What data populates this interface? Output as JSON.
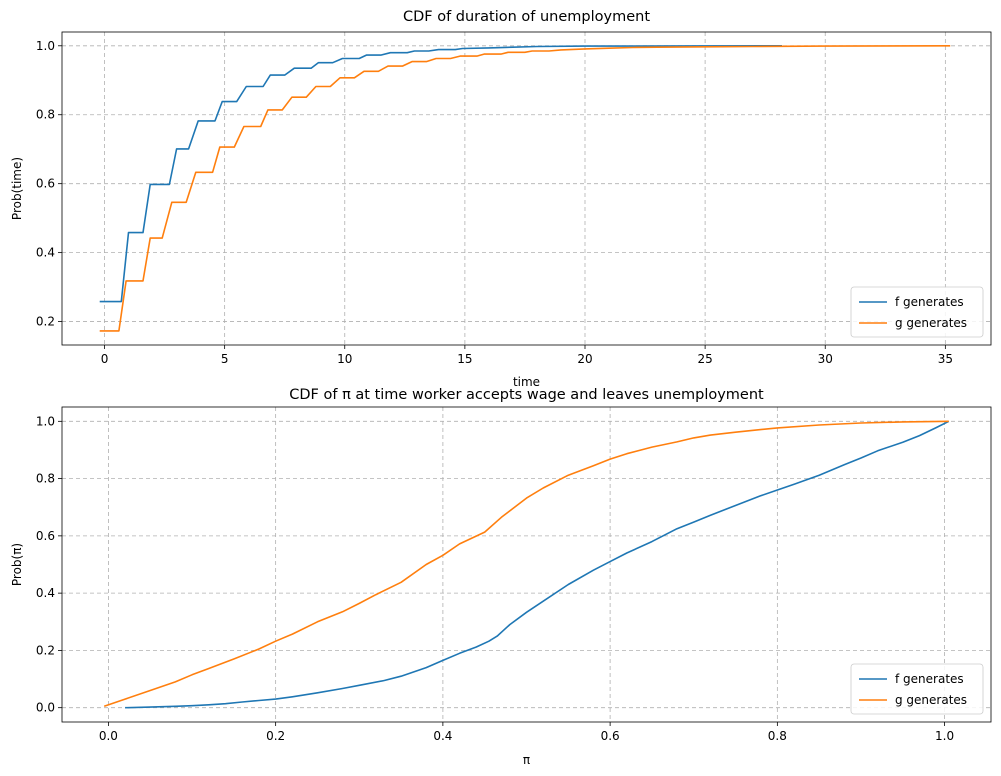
{
  "chart_data": [
    {
      "type": "line",
      "title": "CDF of duration of unemployment",
      "xlabel": "time",
      "ylabel": "Prob(time)",
      "xlim": [
        -1.77,
        36.9
      ],
      "ylim": [
        0.132,
        1.04
      ],
      "xticks": [
        0,
        5,
        10,
        15,
        20,
        25,
        30,
        35
      ],
      "yticks": [
        0.2,
        0.4,
        0.6,
        0.8,
        1.0
      ],
      "grid": true,
      "legend_position": "lower right",
      "series": [
        {
          "name": "f generates",
          "color": "#1f77b4",
          "x": [
            -0.2,
            0.7,
            1.0,
            1.6,
            1.9,
            2.7,
            3.0,
            3.5,
            3.9,
            4.6,
            4.9,
            5.5,
            5.9,
            6.6,
            6.9,
            7.5,
            7.9,
            8.6,
            8.9,
            9.5,
            9.9,
            10.6,
            10.9,
            11.5,
            11.9,
            12.6,
            12.9,
            13.5,
            13.9,
            14.6,
            14.9,
            16,
            17,
            18,
            20,
            28.2
          ],
          "y": [
            0.258,
            0.258,
            0.458,
            0.458,
            0.598,
            0.598,
            0.701,
            0.701,
            0.782,
            0.782,
            0.838,
            0.838,
            0.882,
            0.882,
            0.915,
            0.915,
            0.935,
            0.935,
            0.951,
            0.951,
            0.963,
            0.963,
            0.973,
            0.973,
            0.98,
            0.98,
            0.985,
            0.985,
            0.989,
            0.989,
            0.992,
            0.994,
            0.996,
            0.998,
            0.999,
            1.0
          ]
        },
        {
          "name": "g generates",
          "color": "#ff7f0e",
          "x": [
            -0.2,
            0.6,
            0.9,
            1.6,
            1.9,
            2.4,
            2.8,
            3.4,
            3.8,
            4.5,
            4.8,
            5.4,
            5.8,
            6.5,
            6.8,
            7.4,
            7.8,
            8.4,
            8.8,
            9.4,
            9.8,
            10.4,
            10.8,
            11.4,
            11.8,
            12.4,
            12.8,
            13.4,
            13.8,
            14.4,
            14.8,
            15.5,
            15.8,
            16.5,
            16.8,
            17.5,
            17.8,
            18.5,
            19,
            20,
            21,
            22,
            23,
            25,
            27,
            30,
            35.2
          ],
          "y": [
            0.173,
            0.173,
            0.318,
            0.318,
            0.442,
            0.442,
            0.546,
            0.546,
            0.633,
            0.633,
            0.706,
            0.706,
            0.766,
            0.766,
            0.814,
            0.814,
            0.851,
            0.851,
            0.882,
            0.882,
            0.907,
            0.907,
            0.926,
            0.926,
            0.941,
            0.941,
            0.954,
            0.954,
            0.963,
            0.963,
            0.97,
            0.97,
            0.976,
            0.976,
            0.981,
            0.981,
            0.985,
            0.985,
            0.988,
            0.991,
            0.993,
            0.995,
            0.996,
            0.997,
            0.998,
            0.999,
            1.0
          ]
        }
      ]
    },
    {
      "type": "line",
      "title": "CDF of π at time worker accepts wage and leaves unemployment",
      "xlabel": "π",
      "ylabel": "Prob(π)",
      "xlim": [
        -0.0555,
        1.0555
      ],
      "ylim": [
        -0.05,
        1.05
      ],
      "xticks": [
        0.0,
        0.2,
        0.4,
        0.6,
        0.8,
        1.0
      ],
      "yticks": [
        0.0,
        0.2,
        0.4,
        0.6,
        0.8,
        1.0
      ],
      "grid": true,
      "legend_position": "lower right",
      "series": [
        {
          "name": "f generates",
          "color": "#1f77b4",
          "x": [
            0.02,
            0.05,
            0.08,
            0.1,
            0.12,
            0.14,
            0.16,
            0.18,
            0.2,
            0.22,
            0.25,
            0.28,
            0.3,
            0.33,
            0.35,
            0.38,
            0.4,
            0.42,
            0.44,
            0.455,
            0.465,
            0.48,
            0.5,
            0.52,
            0.55,
            0.58,
            0.6,
            0.62,
            0.65,
            0.68,
            0.7,
            0.72,
            0.75,
            0.78,
            0.8,
            0.82,
            0.85,
            0.88,
            0.9,
            0.92,
            0.95,
            0.97,
            0.99,
            1.005
          ],
          "y": [
            0.0,
            0.002,
            0.005,
            0.007,
            0.01,
            0.014,
            0.02,
            0.025,
            0.03,
            0.038,
            0.052,
            0.067,
            0.078,
            0.095,
            0.11,
            0.14,
            0.165,
            0.19,
            0.212,
            0.232,
            0.25,
            0.29,
            0.333,
            0.372,
            0.43,
            0.48,
            0.51,
            0.54,
            0.58,
            0.625,
            0.648,
            0.672,
            0.706,
            0.74,
            0.76,
            0.78,
            0.812,
            0.848,
            0.872,
            0.897,
            0.927,
            0.95,
            0.978,
            1.0
          ]
        },
        {
          "name": "g generates",
          "color": "#ff7f0e",
          "x": [
            -0.005,
            0.02,
            0.05,
            0.08,
            0.1,
            0.12,
            0.15,
            0.18,
            0.2,
            0.22,
            0.25,
            0.28,
            0.3,
            0.32,
            0.35,
            0.38,
            0.4,
            0.42,
            0.45,
            0.47,
            0.5,
            0.52,
            0.55,
            0.58,
            0.6,
            0.62,
            0.65,
            0.68,
            0.7,
            0.72,
            0.75,
            0.78,
            0.8,
            0.85,
            0.9,
            0.95,
            1.005
          ],
          "y": [
            0.005,
            0.03,
            0.06,
            0.09,
            0.115,
            0.137,
            0.17,
            0.205,
            0.232,
            0.257,
            0.3,
            0.335,
            0.364,
            0.395,
            0.438,
            0.5,
            0.532,
            0.572,
            0.613,
            0.665,
            0.732,
            0.767,
            0.812,
            0.845,
            0.868,
            0.887,
            0.91,
            0.928,
            0.942,
            0.952,
            0.962,
            0.971,
            0.977,
            0.987,
            0.994,
            0.998,
            1.0
          ]
        }
      ]
    }
  ]
}
